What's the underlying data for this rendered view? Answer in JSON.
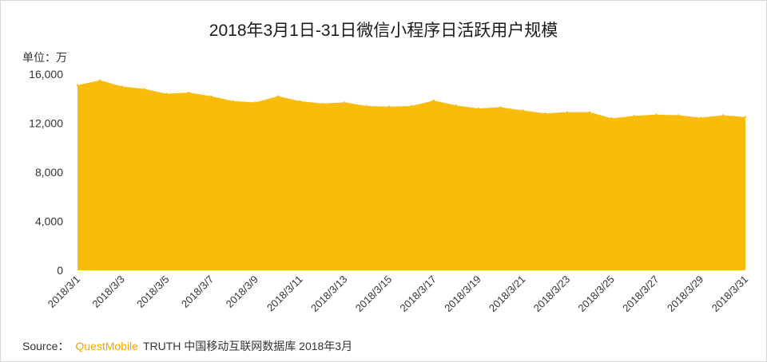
{
  "chart_data": {
    "type": "area",
    "title": "2018年3月1日-31日微信小程序日活跃用户规模",
    "unit_label": "单位：万",
    "ylim": [
      0,
      16000
    ],
    "y_ticks": [
      "0",
      "4,000",
      "8,000",
      "12,000",
      "16,000"
    ],
    "y_tick_values": [
      0,
      4000,
      8000,
      12000,
      16000
    ],
    "x": [
      "2018/3/1",
      "2018/3/2",
      "2018/3/3",
      "2018/3/4",
      "2018/3/5",
      "2018/3/6",
      "2018/3/7",
      "2018/3/8",
      "2018/3/9",
      "2018/3/10",
      "2018/3/11",
      "2018/3/12",
      "2018/3/13",
      "2018/3/14",
      "2018/3/15",
      "2018/3/16",
      "2018/3/17",
      "2018/3/18",
      "2018/3/19",
      "2018/3/20",
      "2018/3/21",
      "2018/3/22",
      "2018/3/23",
      "2018/3/24",
      "2018/3/25",
      "2018/3/26",
      "2018/3/27",
      "2018/3/28",
      "2018/3/29",
      "2018/3/30",
      "2018/3/31"
    ],
    "x_tick_labels": [
      "2018/3/1",
      "2018/3/3",
      "2018/3/5",
      "2018/3/7",
      "2018/3/9",
      "2018/3/11",
      "2018/3/13",
      "2018/3/15",
      "2018/3/17",
      "2018/3/19",
      "2018/3/21",
      "2018/3/23",
      "2018/3/25",
      "2018/3/27",
      "2018/3/29",
      "2018/3/31"
    ],
    "series": [
      {
        "values": [
          15100,
          15500,
          15000,
          14800,
          14400,
          14500,
          14200,
          13800,
          13700,
          14200,
          13800,
          13600,
          13700,
          13400,
          13350,
          13400,
          13850,
          13450,
          13200,
          13300,
          13050,
          12800,
          12900,
          12900,
          12400,
          12600,
          12700,
          12650,
          12450,
          12650,
          12500
        ],
        "color": "#f9bc0b"
      }
    ],
    "grid": false,
    "legend": "none"
  },
  "footer": {
    "source_label": "Source：",
    "brand": "QuestMobile",
    "source_text": "TRUTH 中国移动互联网数据库 2018年3月"
  }
}
